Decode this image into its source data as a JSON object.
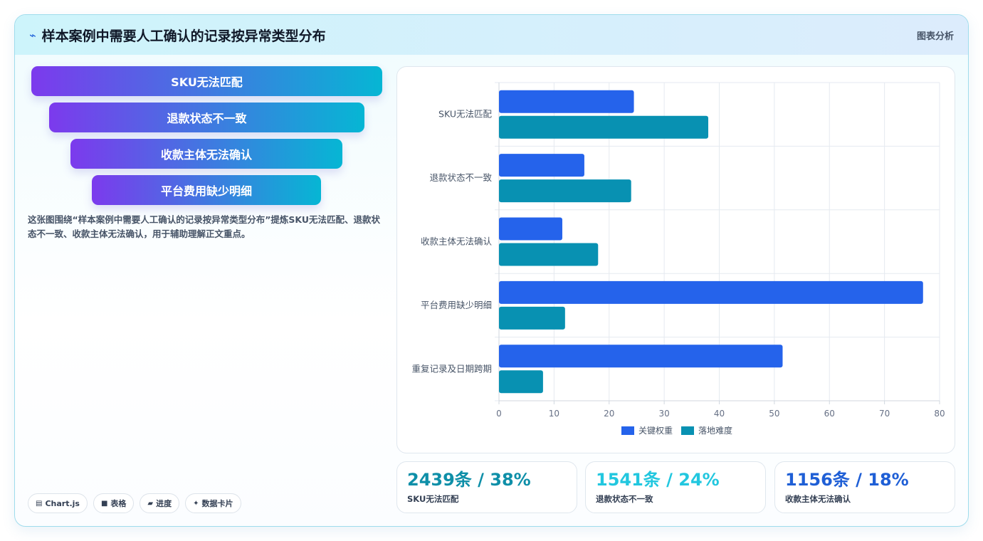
{
  "header": {
    "title": "样本案例中需要人工确认的记录按异常类型分布",
    "tag": "图表分析"
  },
  "funnel": {
    "steps": [
      "SKU无法匹配",
      "退款状态不一致",
      "收款主体无法确认",
      "平台费用缺少明细"
    ]
  },
  "description": "这张图围绕“样本案例中需要人工确认的记录按异常类型分布”提炼SKU无法匹配、退款状态不一致、收款主体无法确认，用于辅助理解正文重点。",
  "chips": [
    {
      "icon": "chart-icon",
      "glyph": "▤",
      "label": "Chart.js"
    },
    {
      "icon": "table-icon",
      "glyph": "■",
      "label": "表格"
    },
    {
      "icon": "progress-icon",
      "glyph": "▰",
      "label": "进度"
    },
    {
      "icon": "sparkle-icon",
      "glyph": "✦",
      "label": "数据卡片"
    }
  ],
  "chart_data": {
    "type": "bar",
    "orientation": "horizontal",
    "categories": [
      "SKU无法匹配",
      "退款状态不一致",
      "收款主体无法确认",
      "平台费用缺少明细",
      "重复记录及日期跨期"
    ],
    "series": [
      {
        "name": "关键权重",
        "color": "#2563eb",
        "values": [
          24.5,
          15.5,
          11.5,
          77,
          51.5
        ]
      },
      {
        "name": "落地难度",
        "color": "#0891b2",
        "values": [
          38,
          24,
          18,
          12,
          8
        ]
      }
    ],
    "xlim": [
      0,
      80
    ],
    "xticks": [
      0,
      10,
      20,
      30,
      40,
      50,
      60,
      70,
      80
    ],
    "grid": true,
    "legend": "bottom"
  },
  "stats": [
    {
      "value": "2439条 / 38%",
      "label": "SKU无法匹配",
      "color": "#0e8fa8"
    },
    {
      "value": "1541条 / 24%",
      "label": "退款状态不一致",
      "color": "#22c7df"
    },
    {
      "value": "1156条 / 18%",
      "label": "收款主体无法确认",
      "color": "#1f5fd6"
    }
  ]
}
